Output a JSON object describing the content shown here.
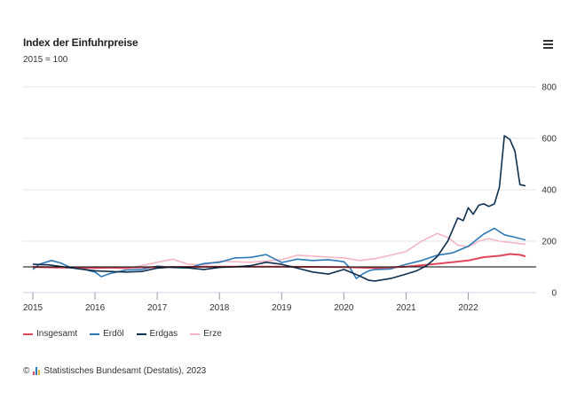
{
  "header": {
    "title": "Index der Einfuhrpreise",
    "subtitle": "2015 = 100",
    "menu_icon": "hamburger-menu-icon"
  },
  "footer": {
    "copyright_symbol": "©",
    "credit": "Statistisches Bundesamt (Destatis), 2023",
    "logo_icon": "destatis-logo-icon"
  },
  "colors": {
    "Insgesamt": "#e0475a",
    "Erdöl": "#2b78b5",
    "Erdgas": "#10304f",
    "Erze": "#f4b6c4",
    "grid": "#e6e6e6",
    "baseline": "#000000"
  },
  "chart_data": {
    "type": "line",
    "title": "Index der Einfuhrpreise",
    "subtitle": "2015 = 100",
    "xlabel": "",
    "ylabel": "",
    "xlim": [
      2015.0,
      2022.92
    ],
    "ylim": [
      0,
      800
    ],
    "y_ticks": [
      0,
      200,
      400,
      600,
      800
    ],
    "x_ticks": [
      2015,
      2016,
      2017,
      2018,
      2019,
      2020,
      2021,
      2022
    ],
    "x_tick_labels": [
      "2015",
      "2016",
      "2017",
      "2018",
      "2019",
      "2020",
      "2021",
      "2022"
    ],
    "reference_line": 100,
    "grid": true,
    "legend": "bottom-left",
    "series": [
      {
        "name": "Insgesamt",
        "x": [
          2015.0,
          2016.0,
          2017.0,
          2018.0,
          2019.0,
          2020.0,
          2020.5,
          2021.0,
          2021.5,
          2022.0,
          2022.25,
          2022.5,
          2022.67,
          2022.83,
          2022.92
        ],
        "y": [
          100,
          96,
          99,
          101,
          101,
          99,
          96,
          101,
          112,
          125,
          138,
          143,
          150,
          147,
          141
        ]
      },
      {
        "name": "Erdöl",
        "x": [
          2015.0,
          2015.1,
          2015.3,
          2015.45,
          2015.6,
          2015.8,
          2016.0,
          2016.1,
          2016.25,
          2016.5,
          2016.75,
          2017.0,
          2017.25,
          2017.5,
          2017.75,
          2018.0,
          2018.25,
          2018.5,
          2018.75,
          2019.0,
          2019.25,
          2019.5,
          2019.75,
          2020.0,
          2020.1,
          2020.2,
          2020.3,
          2020.4,
          2020.5,
          2020.75,
          2021.0,
          2021.25,
          2021.5,
          2021.75,
          2022.0,
          2022.25,
          2022.42,
          2022.58,
          2022.75,
          2022.92
        ],
        "y": [
          90,
          110,
          125,
          115,
          98,
          92,
          80,
          62,
          75,
          88,
          90,
          103,
          97,
          96,
          113,
          118,
          135,
          137,
          148,
          117,
          130,
          125,
          128,
          120,
          95,
          55,
          72,
          85,
          90,
          92,
          110,
          125,
          145,
          155,
          180,
          228,
          250,
          225,
          215,
          205
        ]
      },
      {
        "name": "Erdgas",
        "x": [
          2015.0,
          2015.25,
          2015.5,
          2015.75,
          2016.0,
          2016.25,
          2016.5,
          2016.75,
          2017.0,
          2017.25,
          2017.5,
          2017.75,
          2018.0,
          2018.25,
          2018.5,
          2018.75,
          2019.0,
          2019.25,
          2019.5,
          2019.75,
          2020.0,
          2020.25,
          2020.4,
          2020.5,
          2020.75,
          2021.0,
          2021.17,
          2021.33,
          2021.5,
          2021.67,
          2021.83,
          2021.92,
          2022.0,
          2022.08,
          2022.17,
          2022.25,
          2022.33,
          2022.42,
          2022.5,
          2022.58,
          2022.67,
          2022.75,
          2022.83,
          2022.92
        ],
        "y": [
          110,
          108,
          100,
          92,
          85,
          82,
          80,
          82,
          95,
          100,
          96,
          90,
          98,
          100,
          105,
          118,
          110,
          95,
          80,
          72,
          90,
          65,
          48,
          45,
          55,
          72,
          85,
          105,
          140,
          200,
          290,
          280,
          330,
          305,
          340,
          345,
          335,
          345,
          410,
          610,
          595,
          550,
          420,
          415
        ]
      },
      {
        "name": "Erze",
        "x": [
          2015.0,
          2015.5,
          2016.0,
          2016.5,
          2017.0,
          2017.25,
          2017.5,
          2017.75,
          2018.0,
          2018.5,
          2019.0,
          2019.25,
          2019.5,
          2019.75,
          2020.0,
          2020.25,
          2020.5,
          2020.75,
          2021.0,
          2021.25,
          2021.5,
          2021.67,
          2021.83,
          2022.0,
          2022.17,
          2022.33,
          2022.5,
          2022.67,
          2022.92
        ],
        "y": [
          98,
          95,
          100,
          92,
          118,
          130,
          110,
          108,
          122,
          118,
          128,
          145,
          142,
          138,
          135,
          125,
          132,
          145,
          160,
          200,
          230,
          215,
          185,
          178,
          200,
          210,
          200,
          195,
          188
        ]
      }
    ]
  }
}
